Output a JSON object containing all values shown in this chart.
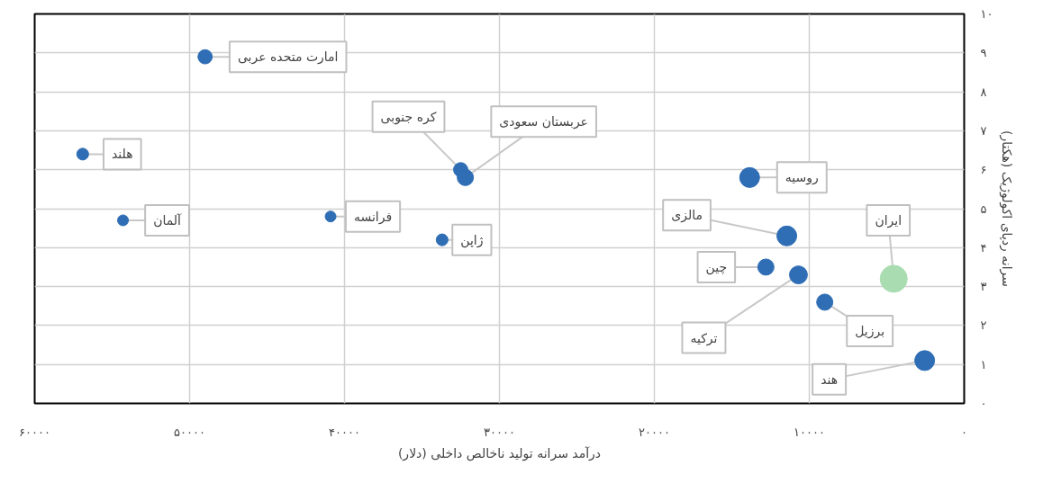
{
  "chart_data": {
    "type": "bubble",
    "xlabel": "درآمد سرانه تولید ناخالص داخلی (دلار)",
    "ylabel": "سرانه ردپای اکولوژیک (هکتار)",
    "x": [
      49000,
      56900,
      54300,
      40900,
      32500,
      32200,
      33700,
      13850,
      11450,
      12800,
      10700,
      4550,
      9000,
      2550
    ],
    "values": [
      8.9,
      6.4,
      4.7,
      4.8,
      6.0,
      5.8,
      4.2,
      5.8,
      4.3,
      3.5,
      3.3,
      3.2,
      2.6,
      1.1
    ],
    "sizes": [
      0.28,
      0.19,
      0.16,
      0.16,
      0.28,
      0.36,
      0.19,
      0.54,
      0.54,
      0.36,
      0.44,
      1,
      0.36,
      0.54
    ],
    "colors": [
      "#2f6eb5",
      "#2f6eb5",
      "#2f6eb5",
      "#2f6eb5",
      "#2f6eb5",
      "#2f6eb5",
      "#2f6eb5",
      "#2f6eb5",
      "#2f6eb5",
      "#2f6eb5",
      "#2f6eb5",
      "#a9dcb0",
      "#2f6eb5",
      "#2f6eb5"
    ],
    "annotations": [
      {
        "text": "امارت متحده عربی",
        "x": 49000,
        "y": 8.9
      },
      {
        "text": "هلند",
        "x": 56900,
        "y": 6.4
      },
      {
        "text": "آلمان",
        "x": 54300,
        "y": 4.7
      },
      {
        "text": "فرانسه",
        "x": 40900,
        "y": 4.8
      },
      {
        "text": "کره جنوبی",
        "x": 32500,
        "y": 6.0
      },
      {
        "text": "عربستان سعودی",
        "x": 32200,
        "y": 5.8
      },
      {
        "text": "ژاپن",
        "x": 33700,
        "y": 4.2
      },
      {
        "text": "روسیه",
        "x": 13850,
        "y": 5.8
      },
      {
        "text": "مالزی",
        "x": 11450,
        "y": 4.3
      },
      {
        "text": "چین",
        "x": 12800,
        "y": 3.5
      },
      {
        "text": "ترکیه",
        "x": 10700,
        "y": 3.3
      },
      {
        "text": "ایران",
        "x": 4550,
        "y": 3.2
      },
      {
        "text": "برزیل",
        "x": 9000,
        "y": 2.6
      },
      {
        "text": "هند",
        "x": 2550,
        "y": 1.1
      }
    ],
    "xlim": [
      60000,
      0
    ],
    "xticks": [
      {
        "value": 60000,
        "label": "۶۰۰۰۰"
      },
      {
        "value": 50000,
        "label": "۵۰۰۰۰"
      },
      {
        "value": 40000,
        "label": "۴۰۰۰۰"
      },
      {
        "value": 30000,
        "label": "۳۰۰۰۰"
      },
      {
        "value": 20000,
        "label": "۲۰۰۰۰"
      },
      {
        "value": 10000,
        "label": "۱۰۰۰۰"
      },
      {
        "value": 0,
        "label": "۰"
      }
    ],
    "ylim": [
      0,
      10
    ],
    "yticks": [
      {
        "value": 0,
        "label": "۰"
      },
      {
        "value": 1,
        "label": "۱"
      },
      {
        "value": 2,
        "label": "۲"
      },
      {
        "value": 3,
        "label": "۳"
      },
      {
        "value": 4,
        "label": "۴"
      },
      {
        "value": 5,
        "label": "۵"
      },
      {
        "value": 6,
        "label": "۶"
      },
      {
        "value": 7,
        "label": "۷"
      },
      {
        "value": 8,
        "label": "۸"
      },
      {
        "value": 9,
        "label": "۹"
      },
      {
        "value": 10,
        "label": "۱۰"
      }
    ],
    "grid": true,
    "marker": "circle"
  }
}
